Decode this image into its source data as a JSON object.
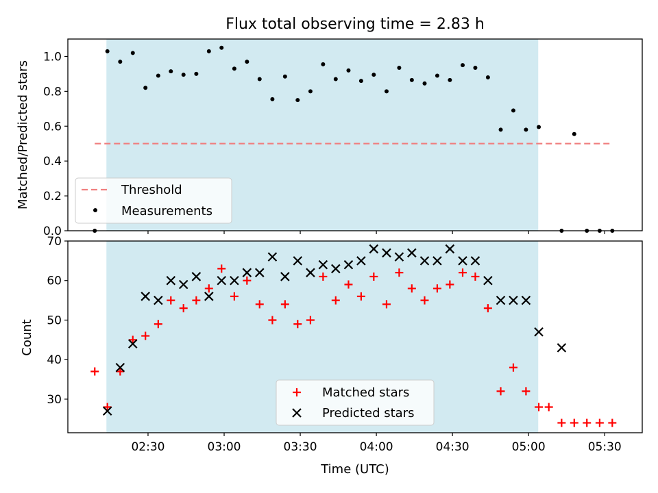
{
  "figure": {
    "title": "Flux total observing time = 2.83 h",
    "xlabel": "Time (UTC)",
    "x_ticks": [
      {
        "label": "02:30",
        "hours": 2.5
      },
      {
        "label": "03:00",
        "hours": 3.0
      },
      {
        "label": "03:30",
        "hours": 3.5
      },
      {
        "label": "04:00",
        "hours": 4.0
      },
      {
        "label": "04:30",
        "hours": 4.5
      },
      {
        "label": "05:00",
        "hours": 5.0
      },
      {
        "label": "05:30",
        "hours": 5.5
      }
    ],
    "xlim_hours": [
      1.9733,
      5.7467
    ],
    "shaded_span_hours": [
      2.2267,
      5.0633
    ],
    "shade_color": "#add8e6"
  },
  "chart_data": [
    {
      "type": "scatter",
      "ylabel": "Matched/Predicted stars",
      "ylim": [
        0,
        1.1
      ],
      "y_ticks": [
        "0.0",
        "0.2",
        "0.4",
        "0.6",
        "0.8",
        "1.0"
      ],
      "legend_position": "lower-left",
      "threshold": {
        "name": "Threshold",
        "value": 0.5,
        "x_range_hours": [
          2.15,
          5.55
        ],
        "color": "#f08080",
        "style": "dashed"
      },
      "series": [
        {
          "name": "Measurements",
          "color": "#000000",
          "marker": "dot",
          "x_hours": [
            2.15,
            2.233,
            2.317,
            2.4,
            2.483,
            2.567,
            2.65,
            2.733,
            2.817,
            2.9,
            2.983,
            3.067,
            3.15,
            3.233,
            3.317,
            3.4,
            3.483,
            3.567,
            3.65,
            3.733,
            3.817,
            3.9,
            3.983,
            4.067,
            4.15,
            4.233,
            4.317,
            4.4,
            4.483,
            4.567,
            4.65,
            4.733,
            4.817,
            4.9,
            4.983,
            5.067,
            5.217,
            5.3,
            5.383,
            5.467,
            5.55
          ],
          "y": [
            0.0,
            1.03,
            0.97,
            1.02,
            0.82,
            0.89,
            0.915,
            0.895,
            0.9,
            1.03,
            1.05,
            0.93,
            0.97,
            0.87,
            0.755,
            0.885,
            0.75,
            0.8,
            0.955,
            0.87,
            0.92,
            0.86,
            0.895,
            0.8,
            0.935,
            0.865,
            0.845,
            0.89,
            0.865,
            0.95,
            0.935,
            0.88,
            0.58,
            0.69,
            0.58,
            0.595,
            0.0,
            0.555,
            0.0,
            0.0,
            0.0
          ]
        }
      ]
    },
    {
      "type": "scatter",
      "ylabel": "Count",
      "ylim": [
        21.5,
        70
      ],
      "y_ticks": [
        "30",
        "40",
        "50",
        "60",
        "70"
      ],
      "legend_position": "lower-center",
      "series": [
        {
          "name": "Matched stars",
          "color": "#ff0000",
          "marker": "plus",
          "x_hours": [
            2.15,
            2.233,
            2.317,
            2.4,
            2.483,
            2.567,
            2.65,
            2.733,
            2.817,
            2.9,
            2.983,
            3.067,
            3.15,
            3.233,
            3.317,
            3.4,
            3.483,
            3.567,
            3.65,
            3.733,
            3.817,
            3.9,
            3.983,
            4.067,
            4.15,
            4.233,
            4.317,
            4.4,
            4.483,
            4.567,
            4.65,
            4.733,
            4.817,
            4.9,
            4.983,
            5.067,
            5.133,
            5.217,
            5.3,
            5.383,
            5.467,
            5.55
          ],
          "y": [
            37,
            28,
            37,
            45,
            46,
            49,
            55,
            53,
            55,
            58,
            63,
            56,
            60,
            54,
            50,
            54,
            49,
            50,
            61,
            55,
            59,
            56,
            61,
            54,
            62,
            58,
            55,
            58,
            59,
            62,
            61,
            53,
            32,
            38,
            32,
            28,
            28,
            24,
            24,
            24,
            24,
            24
          ]
        },
        {
          "name": "Predicted stars",
          "color": "#000000",
          "marker": "x",
          "x_hours": [
            2.233,
            2.317,
            2.4,
            2.483,
            2.567,
            2.65,
            2.733,
            2.817,
            2.9,
            2.983,
            3.067,
            3.15,
            3.233,
            3.317,
            3.4,
            3.483,
            3.567,
            3.65,
            3.733,
            3.817,
            3.9,
            3.983,
            4.067,
            4.15,
            4.233,
            4.317,
            4.4,
            4.483,
            4.567,
            4.65,
            4.733,
            4.817,
            4.9,
            4.983,
            5.067,
            5.217
          ],
          "y": [
            27,
            38,
            44,
            56,
            55,
            60,
            59,
            61,
            56,
            60,
            60,
            62,
            62,
            66,
            61,
            65,
            62,
            64,
            63,
            64,
            65,
            68,
            67,
            66,
            67,
            65,
            65,
            68,
            65,
            65,
            60,
            55,
            55,
            55,
            47,
            43
          ]
        }
      ]
    }
  ]
}
